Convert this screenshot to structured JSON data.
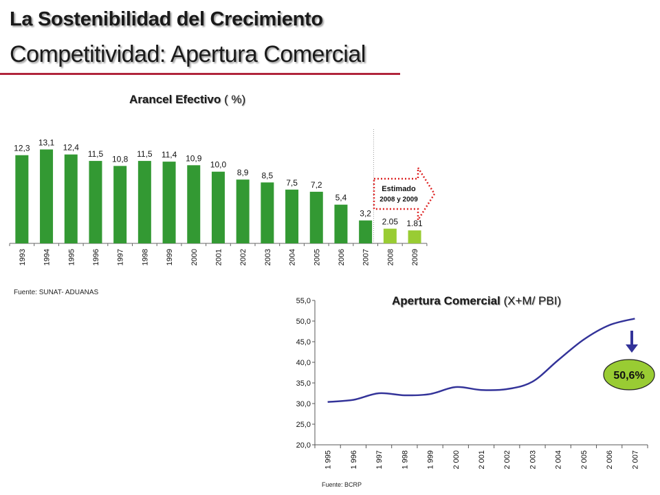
{
  "header": {
    "title": "La Sostenibilidad del Crecimiento",
    "subtitle": "Competitividad: Apertura Comercial"
  },
  "colors": {
    "rule": "#b0243a",
    "bar_actual": "#339933",
    "bar_estimate": "#99cc33",
    "line": "#333399",
    "callout_border": "#dd2222",
    "badge": "#99cc33",
    "arrow": "#333399"
  },
  "chart_data": [
    {
      "type": "bar",
      "title_bold": "Arancel Efectivo",
      "title_rest": " ( %)",
      "categories": [
        "1993",
        "1994",
        "1995",
        "1996",
        "1997",
        "1998",
        "1999",
        "2000",
        "2001",
        "2002",
        "2003",
        "2004",
        "2005",
        "2006",
        "2007",
        "2008",
        "2009"
      ],
      "values": [
        12.3,
        13.1,
        12.4,
        11.5,
        10.8,
        11.5,
        11.4,
        10.9,
        10.0,
        8.9,
        8.5,
        7.5,
        7.2,
        5.4,
        3.2,
        2.05,
        1.81
      ],
      "value_labels": [
        "12,3",
        "13,1",
        "12,4",
        "11,5",
        "10,8",
        "11,5",
        "11,4",
        "10,9",
        "10,0",
        "8,9",
        "8,5",
        "7,5",
        "7,2",
        "5,4",
        "3,2",
        "2.05",
        "1.81"
      ],
      "estimated_from_index": 15,
      "estimate_label_line1": "Estimado",
      "estimate_label_line2": "2008 y 2009",
      "ylim": [
        0,
        14
      ],
      "source": "Fuente: SUNAT- ADUANAS"
    },
    {
      "type": "line",
      "title_bold": "Apertura Comercial",
      "title_rest": " (X+M/ PBI)",
      "x": [
        "1 995",
        "1 996",
        "1 997",
        "1 998",
        "1 999",
        "2 000",
        "2 001",
        "2 002",
        "2 003",
        "2 004",
        "2 005",
        "2 006",
        "2 007"
      ],
      "values": [
        30.4,
        30.9,
        32.5,
        32.0,
        32.3,
        34.0,
        33.3,
        33.5,
        35.3,
        40.5,
        45.5,
        49.0,
        50.6
      ],
      "y_ticks": [
        "55,0",
        "50,0",
        "45,0",
        "40,0",
        "35,0",
        "30,0",
        "25,0",
        "20,0"
      ],
      "ylim": [
        20,
        55
      ],
      "badge_label": "50,6%",
      "source": "Fuente: BCRP"
    }
  ]
}
